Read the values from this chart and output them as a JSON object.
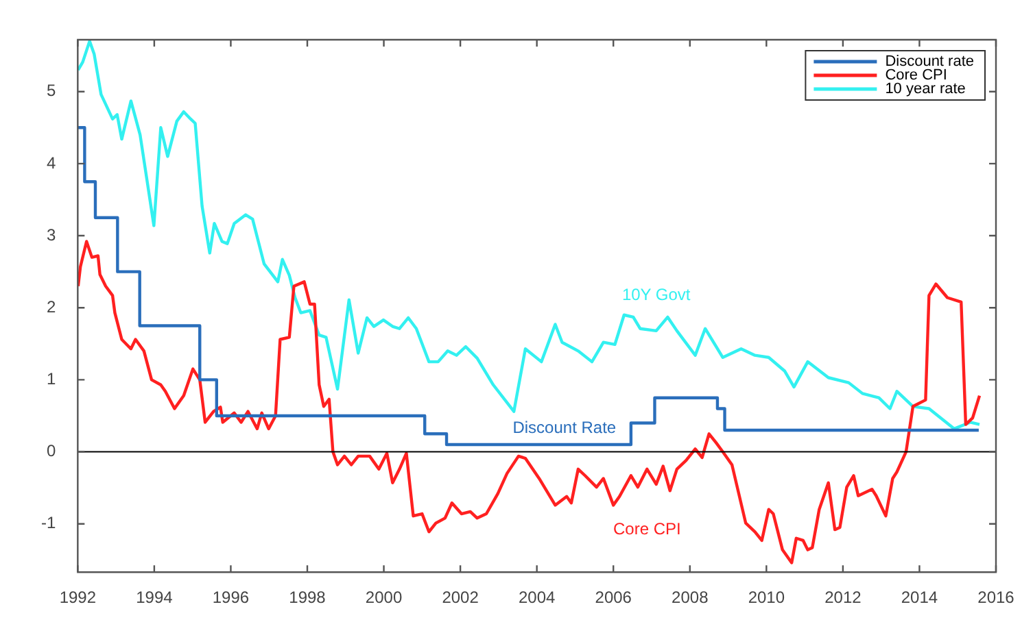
{
  "chart_data": {
    "type": "line",
    "xlim": [
      1992,
      2016
    ],
    "xticks": [
      1992,
      1994,
      1996,
      1998,
      2000,
      2002,
      2004,
      2006,
      2008,
      2010,
      2012,
      2014,
      2016
    ],
    "ylim": [
      -1.67,
      5.72
    ],
    "yticks": [
      -1,
      0,
      1,
      2,
      3,
      4,
      5
    ],
    "legend": "top right",
    "ref_lines": [
      {
        "axis": "y",
        "value": 0,
        "color": "#000000"
      }
    ],
    "annotations": [
      "Discount Rate",
      "Core CPI",
      "10Y Govt"
    ],
    "series": [
      {
        "name": "Discount rate",
        "type": "step",
        "color": "#2a6ebb",
        "x": [
          1992,
          1992.18,
          1992.46,
          1993.04,
          1993.62,
          1995.19,
          1995.63,
          2001.07,
          2001.64,
          2006.46,
          2007.08,
          2008.72,
          2008.91,
          2015.55
        ],
        "values": [
          4.5,
          3.75,
          3.25,
          2.5,
          1.75,
          1.0,
          0.5,
          0.25,
          0.1,
          0.4,
          0.75,
          0.6,
          0.3,
          0.3
        ]
      },
      {
        "name": "Core CPI",
        "type": "line",
        "color": "#ff2020",
        "x": [
          1992.01,
          1992.07,
          1992.23,
          1992.37,
          1992.53,
          1992.58,
          1992.73,
          1992.91,
          1992.97,
          1993.15,
          1993.39,
          1993.51,
          1993.73,
          1993.93,
          1994.17,
          1994.29,
          1994.53,
          1994.77,
          1995.01,
          1995.19,
          1995.33,
          1995.55,
          1995.73,
          1995.79,
          1996.09,
          1996.27,
          1996.45,
          1996.69,
          1996.81,
          1996.99,
          1997.17,
          1997.29,
          1997.53,
          1997.65,
          1997.92,
          1998.07,
          1998.19,
          1998.31,
          1998.43,
          1998.57,
          1998.67,
          1998.79,
          1998.97,
          1999.15,
          1999.33,
          1999.63,
          1999.87,
          2000.08,
          2000.23,
          2000.41,
          2000.59,
          2000.77,
          2001.0,
          2001.18,
          2001.36,
          2001.6,
          2001.78,
          2002.03,
          2002.26,
          2002.44,
          2002.68,
          2002.98,
          2003.22,
          2003.52,
          2003.7,
          2004.06,
          2004.48,
          2004.78,
          2004.9,
          2005.08,
          2005.26,
          2005.56,
          2005.74,
          2006.0,
          2006.16,
          2006.46,
          2006.64,
          2006.88,
          2007.12,
          2007.3,
          2007.48,
          2007.66,
          2007.9,
          2008.14,
          2008.32,
          2008.5,
          2008.68,
          2008.86,
          2009.1,
          2009.46,
          2009.7,
          2009.88,
          2010.06,
          2010.18,
          2010.42,
          2010.66,
          2010.78,
          2010.96,
          2011.08,
          2011.2,
          2011.38,
          2011.62,
          2011.79,
          2011.92,
          2012.1,
          2012.28,
          2012.4,
          2012.76,
          2012.87,
          2013.12,
          2013.3,
          2013.41,
          2013.65,
          2013.83,
          2014.16,
          2014.25,
          2014.43,
          2014.73,
          2015.09,
          2015.21,
          2015.39,
          2015.57
        ],
        "values": [
          2.3,
          2.57,
          2.92,
          2.7,
          2.72,
          2.46,
          2.3,
          2.17,
          1.93,
          1.56,
          1.43,
          1.56,
          1.4,
          1.0,
          0.93,
          0.84,
          0.6,
          0.78,
          1.15,
          1.0,
          0.41,
          0.56,
          0.62,
          0.41,
          0.54,
          0.41,
          0.56,
          0.32,
          0.54,
          0.32,
          0.5,
          1.56,
          1.59,
          2.3,
          2.36,
          2.05,
          2.05,
          0.93,
          0.63,
          0.73,
          0,
          -0.18,
          -0.06,
          -0.18,
          -0.06,
          -0.06,
          -0.24,
          -0.02,
          -0.43,
          -0.24,
          -0.02,
          -0.89,
          -0.86,
          -1.11,
          -0.99,
          -0.92,
          -0.71,
          -0.86,
          -0.83,
          -0.92,
          -0.86,
          -0.58,
          -0.3,
          -0.06,
          -0.09,
          -0.37,
          -0.74,
          -0.62,
          -0.71,
          -0.24,
          -0.33,
          -0.49,
          -0.37,
          -0.74,
          -0.62,
          -0.33,
          -0.49,
          -0.24,
          -0.45,
          -0.2,
          -0.54,
          -0.24,
          -0.12,
          0.04,
          -0.08,
          0.25,
          0.13,
          0,
          -0.18,
          -0.99,
          -1.11,
          -1.23,
          -0.8,
          -0.86,
          -1.36,
          -1.54,
          -1.2,
          -1.23,
          -1.36,
          -1.33,
          -0.8,
          -0.43,
          -1.08,
          -1.05,
          -0.49,
          -0.33,
          -0.61,
          -0.52,
          -0.61,
          -0.89,
          -0.37,
          -0.28,
          0,
          0.63,
          0.72,
          2.17,
          2.33,
          2.14,
          2.08,
          0.38,
          0.47,
          0.78
        ]
      },
      {
        "name": "10 year rate",
        "type": "line",
        "color": "#33f0f0",
        "x": [
          1992.01,
          1992.13,
          1992.31,
          1992.43,
          1992.61,
          1992.91,
          1993.03,
          1993.15,
          1993.39,
          1993.63,
          1993.99,
          1994.17,
          1994.35,
          1994.59,
          1994.77,
          1994.95,
          1995.07,
          1995.25,
          1995.45,
          1995.57,
          1995.77,
          1995.91,
          1996.09,
          1996.39,
          1996.57,
          1996.87,
          1997.23,
          1997.35,
          1997.53,
          1997.68,
          1997.83,
          1998.07,
          1998.31,
          1998.49,
          1998.79,
          1999.09,
          1999.33,
          1999.56,
          1999.74,
          1999.99,
          2000.23,
          2000.41,
          2000.64,
          2000.85,
          2001.18,
          2001.42,
          2001.67,
          2001.9,
          2002.14,
          2002.44,
          2002.86,
          2003.4,
          2003.7,
          2004.12,
          2004.48,
          2004.66,
          2005.08,
          2005.44,
          2005.74,
          2006.04,
          2006.28,
          2006.52,
          2006.7,
          2007.12,
          2007.42,
          2007.66,
          2008.14,
          2008.4,
          2008.86,
          2009.34,
          2009.7,
          2010.06,
          2010.48,
          2010.72,
          2011.08,
          2011.62,
          2012.15,
          2012.51,
          2012.94,
          2013.23,
          2013.41,
          2013.83,
          2014.25,
          2014.91,
          2015.33,
          2015.57
        ],
        "values": [
          5.3,
          5.41,
          5.7,
          5.52,
          4.96,
          4.62,
          4.68,
          4.34,
          4.87,
          4.4,
          3.14,
          4.5,
          4.1,
          4.59,
          4.72,
          4.62,
          4.56,
          3.41,
          2.76,
          3.17,
          2.92,
          2.89,
          3.17,
          3.29,
          3.23,
          2.61,
          2.36,
          2.67,
          2.45,
          2.14,
          1.93,
          1.96,
          1.62,
          1.59,
          0.87,
          2.11,
          1.37,
          1.86,
          1.74,
          1.83,
          1.74,
          1.71,
          1.86,
          1.71,
          1.25,
          1.25,
          1.4,
          1.34,
          1.46,
          1.3,
          0.93,
          0.56,
          1.43,
          1.25,
          1.77,
          1.52,
          1.4,
          1.25,
          1.52,
          1.49,
          1.9,
          1.87,
          1.71,
          1.68,
          1.87,
          1.68,
          1.34,
          1.71,
          1.31,
          1.43,
          1.34,
          1.31,
          1.12,
          0.9,
          1.25,
          1.03,
          0.96,
          0.81,
          0.75,
          0.6,
          0.84,
          0.63,
          0.6,
          0.32,
          0.41,
          0.38
        ]
      }
    ]
  }
}
